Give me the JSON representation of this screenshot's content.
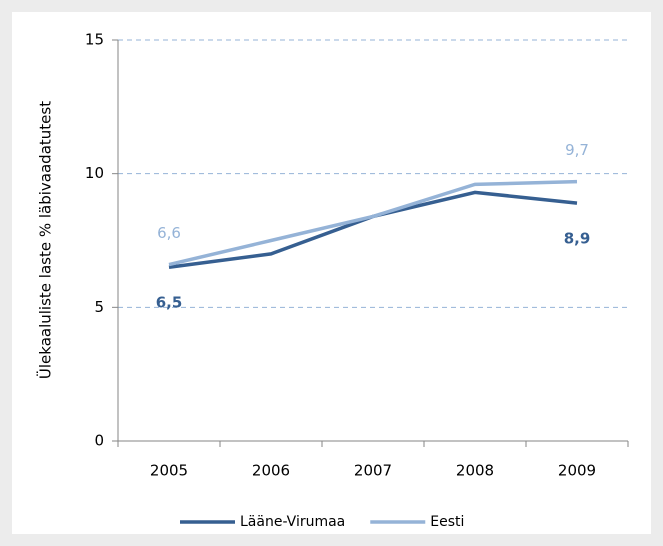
{
  "chart_data": {
    "type": "line",
    "y_label": "Ülekaaluliste laste % läbivaadatutest",
    "categories": [
      "2005",
      "2006",
      "2007",
      "2008",
      "2009"
    ],
    "series": [
      {
        "name": "Lääne-Virumaa",
        "color": "#365f91",
        "values": [
          6.5,
          7.0,
          8.4,
          9.3,
          8.9
        ],
        "value_labels": [
          "6,5",
          null,
          null,
          null,
          "8,9"
        ]
      },
      {
        "name": "Eesti",
        "color": "#95b3d7",
        "values": [
          6.6,
          7.5,
          8.4,
          9.6,
          9.7
        ],
        "value_labels": [
          "6,6",
          null,
          null,
          null,
          "9,7"
        ]
      }
    ],
    "ylim": [
      0,
      15
    ],
    "yticks": [
      0,
      5,
      10,
      15
    ],
    "grid": true,
    "legend": "bottom"
  }
}
